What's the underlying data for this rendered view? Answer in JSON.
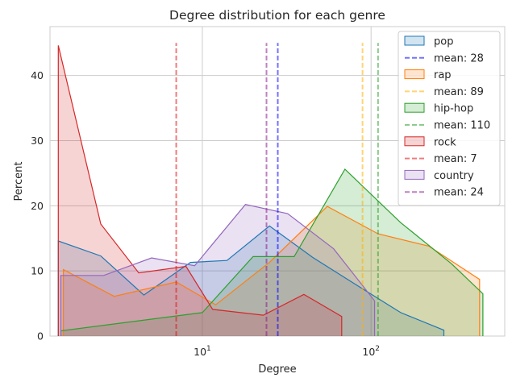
{
  "chart_data": {
    "type": "area",
    "title": "Degree distribution for each genre",
    "xlabel": "Degree",
    "ylabel": "Percent",
    "xscale": "log",
    "xlim": [
      1.25,
      620
    ],
    "ylim": [
      0,
      47.5
    ],
    "x_ticks": [
      10,
      100
    ],
    "x_tick_labels": [
      "10^1",
      "10^2"
    ],
    "y_ticks": [
      0,
      10,
      20,
      30,
      40
    ],
    "grid": true,
    "legend_position": "top-right",
    "series": [
      {
        "name": "pop",
        "color": "#1f77b4",
        "x": [
          1.4,
          1.4,
          2.5,
          4.5,
          8.5,
          14,
          25,
          45,
          80,
          150,
          270,
          270
        ],
        "y": [
          0,
          14.6,
          12.3,
          6.3,
          11.3,
          11.6,
          16.9,
          12.1,
          8.0,
          3.6,
          0.9,
          0
        ]
      },
      {
        "name": "rap",
        "color": "#ff7f0e",
        "x": [
          1.5,
          1.5,
          3.0,
          7.0,
          12,
          25,
          55,
          110,
          220,
          440,
          440
        ],
        "y": [
          0,
          10.2,
          6.1,
          8.3,
          4.8,
          11.3,
          19.9,
          15.7,
          13.8,
          8.7,
          0
        ]
      },
      {
        "name": "hip-hop",
        "color": "#2ca02c",
        "x": [
          1.45,
          1.45,
          10,
          20,
          35,
          70,
          150,
          300,
          460,
          460
        ],
        "y": [
          0,
          0.8,
          3.6,
          12.2,
          12.2,
          25.6,
          17.4,
          11.1,
          6.5,
          0
        ]
      },
      {
        "name": "rock",
        "color": "#d62728",
        "x": [
          1.4,
          1.4,
          2.5,
          4.2,
          8.0,
          11.5,
          23,
          40,
          67,
          67
        ],
        "y": [
          0,
          44.6,
          17.2,
          9.7,
          10.7,
          4.1,
          3.2,
          6.4,
          3.0,
          0
        ]
      },
      {
        "name": "country",
        "color": "#9467bd",
        "x": [
          1.45,
          1.45,
          2.6,
          5.0,
          9.0,
          18,
          32,
          60,
          105,
          105
        ],
        "y": [
          0,
          9.3,
          9.3,
          12.0,
          10.8,
          20.2,
          18.8,
          13.4,
          5.4,
          0
        ]
      }
    ],
    "means": [
      {
        "name": "mean: 28",
        "value": 28,
        "color": "#0000ff"
      },
      {
        "name": "mean: 89",
        "value": 89,
        "color": "#ffb000"
      },
      {
        "name": "mean: 110",
        "value": 110,
        "color": "#2ca02c"
      },
      {
        "name": "mean: 7",
        "value": 7,
        "color": "#e01010"
      },
      {
        "name": "mean: 24",
        "value": 24,
        "color": "#8b1a8b"
      }
    ],
    "mean_line_top": 45
  }
}
